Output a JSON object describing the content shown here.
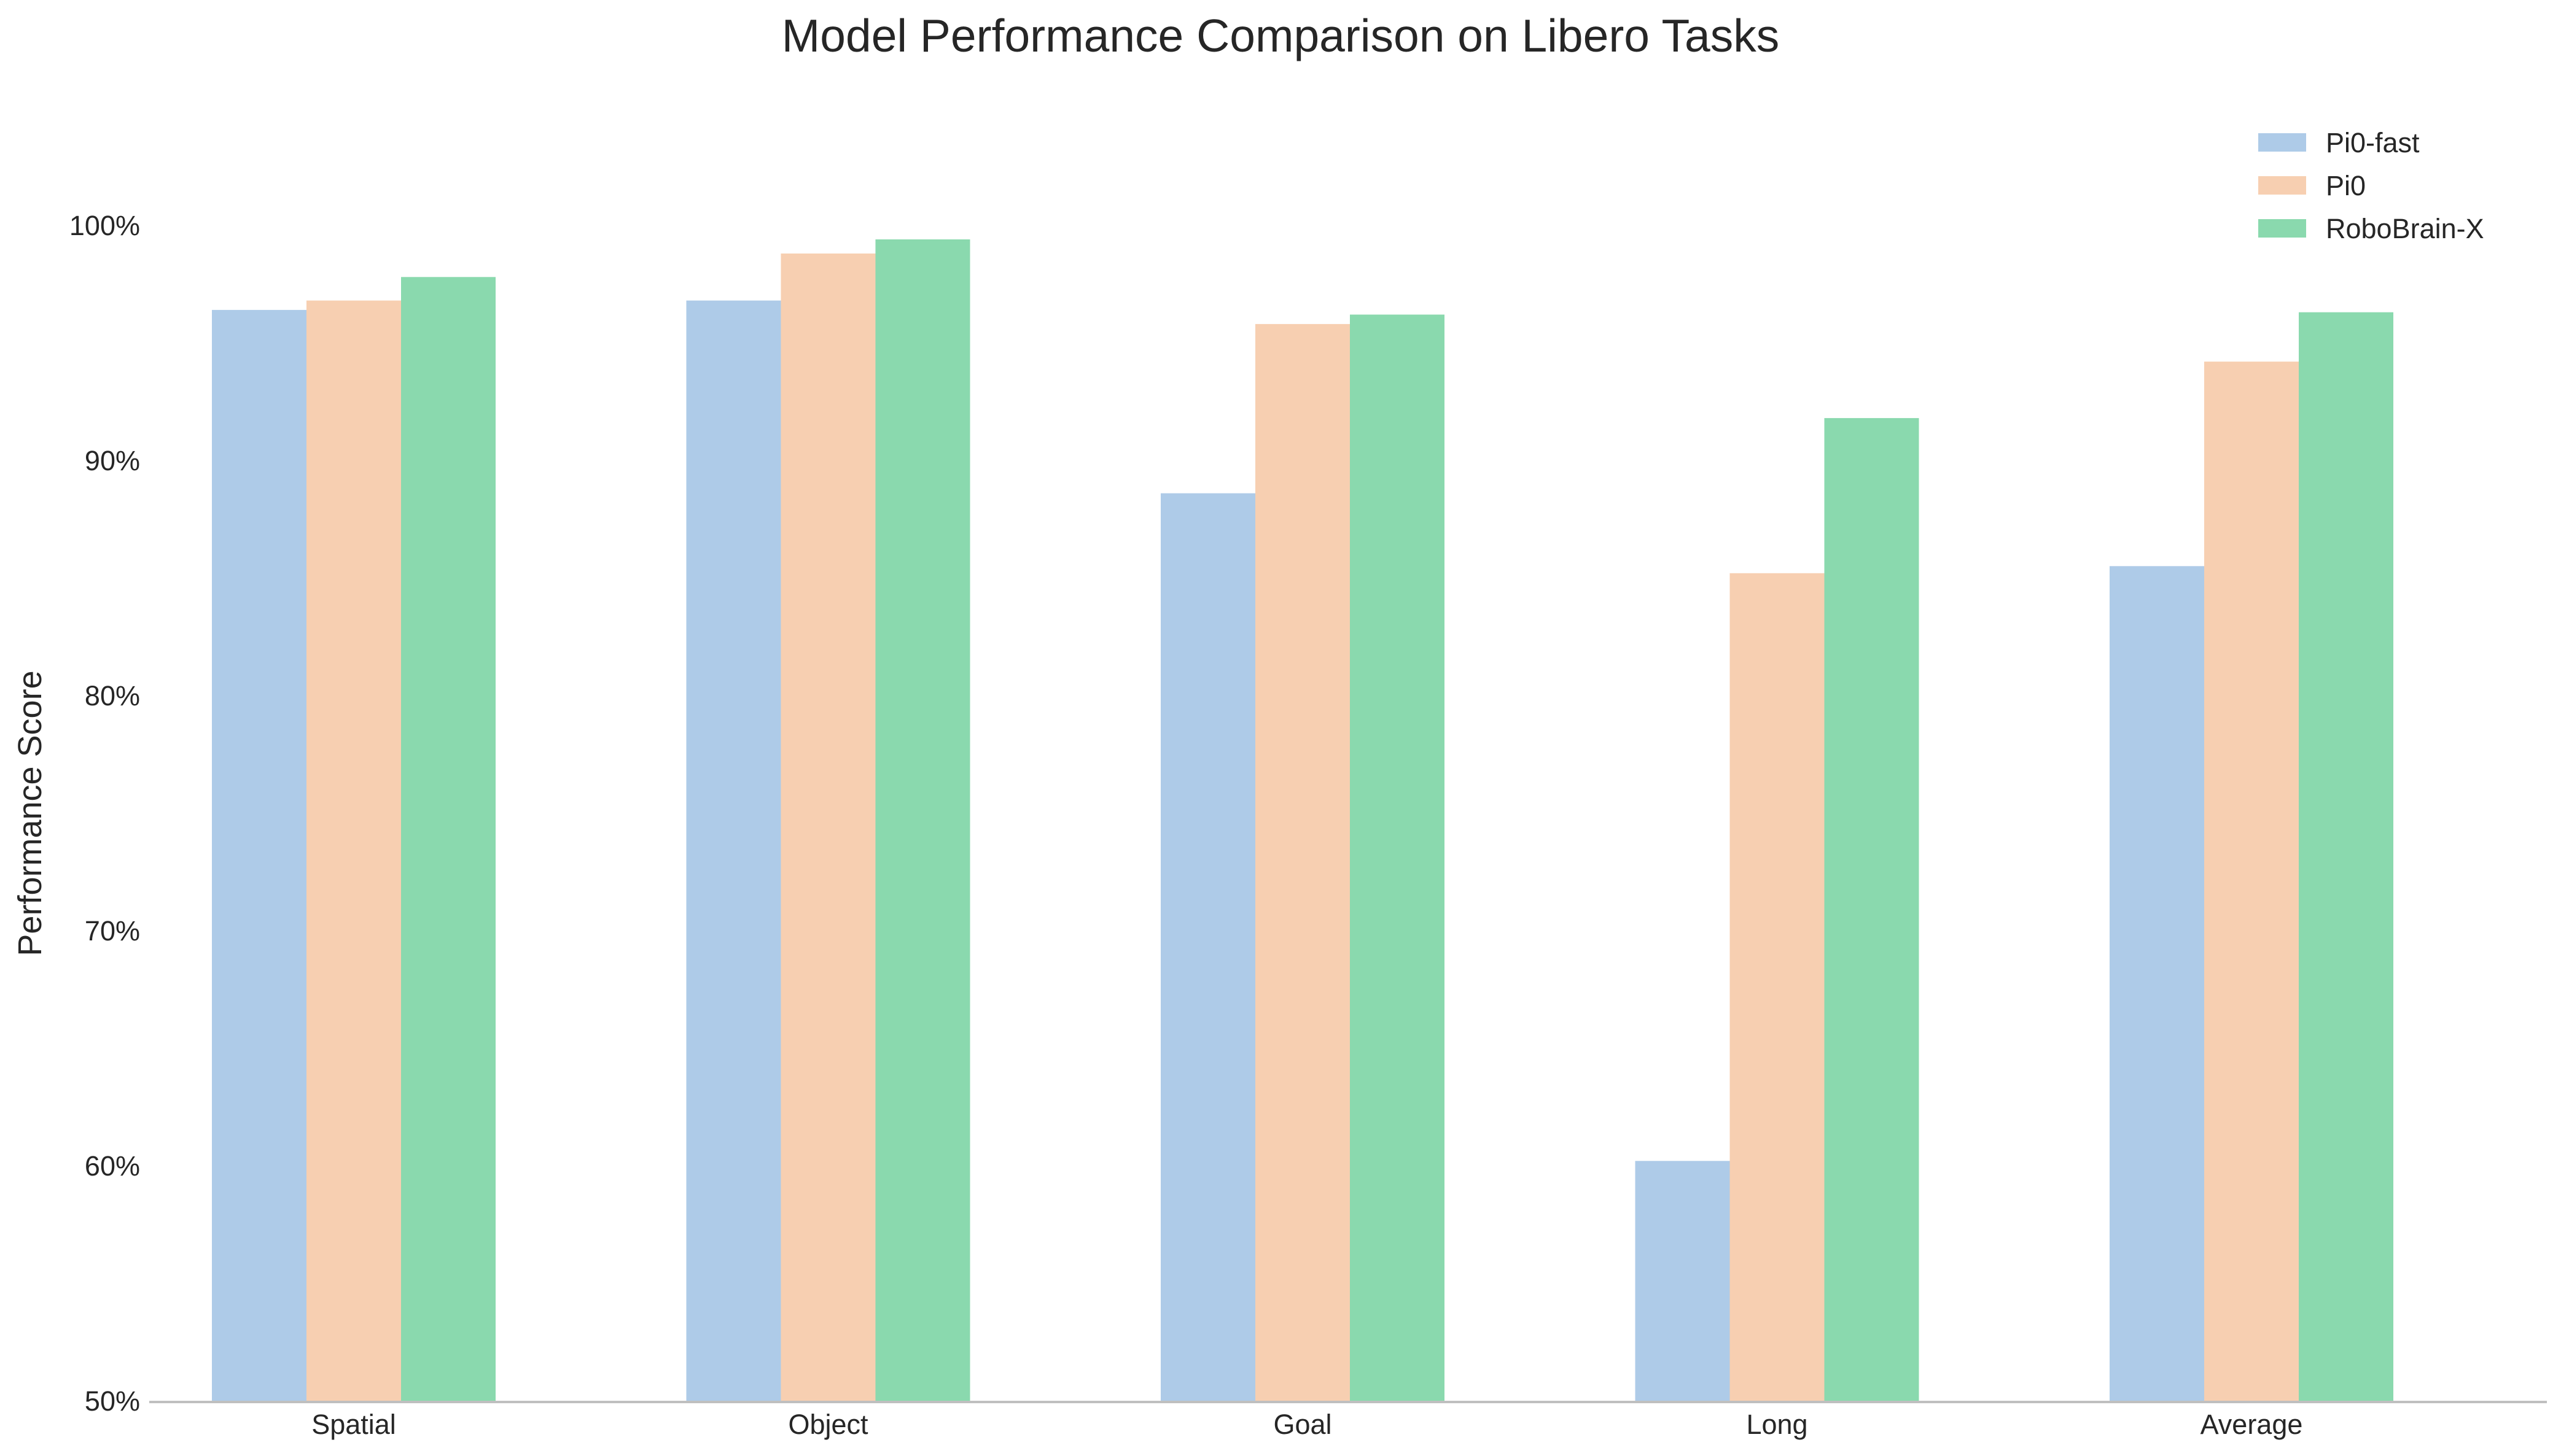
{
  "colors": {
    "series": [
      "#aecbe8",
      "#f7cfb1",
      "#8ad9ae"
    ],
    "axis": "#bfbfbf",
    "text": "#262626"
  },
  "chart_data": {
    "type": "bar",
    "title": "Model Performance Comparison on Libero Tasks",
    "xlabel": "",
    "ylabel": "Performance Score",
    "categories": [
      "Spatial",
      "Object",
      "Goal",
      "Long",
      "Average"
    ],
    "series": [
      {
        "name": "Pi0-fast",
        "values": [
          96.4,
          96.8,
          88.6,
          60.2,
          85.5
        ]
      },
      {
        "name": "Pi0",
        "values": [
          96.8,
          98.8,
          95.8,
          85.2,
          94.2
        ]
      },
      {
        "name": "RoboBrain-X",
        "values": [
          97.8,
          99.4,
          96.2,
          91.8,
          96.3
        ]
      }
    ],
    "ylim": [
      50,
      105
    ],
    "yticks": [
      50,
      60,
      70,
      80,
      90,
      100
    ],
    "ytick_labels": [
      "50%",
      "60%",
      "70%",
      "80%",
      "90%",
      "100%"
    ],
    "grid": false,
    "legend_position": "top-right"
  }
}
